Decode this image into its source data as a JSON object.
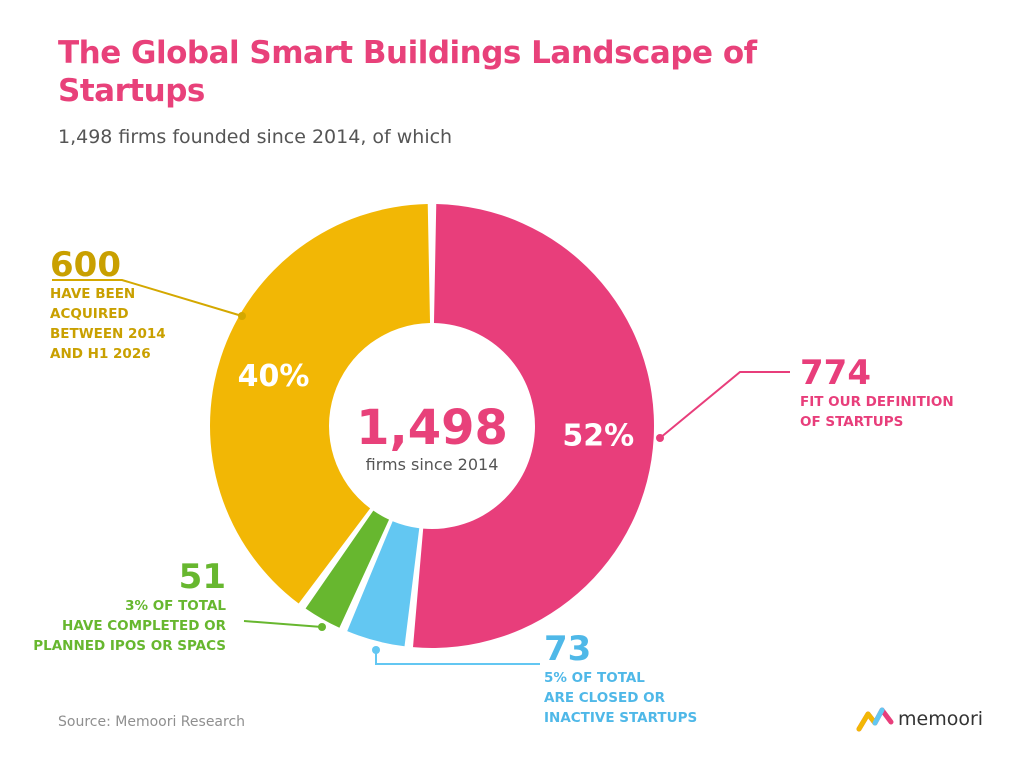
{
  "header": {
    "title": "The Global Smart Buildings Landscape of Startups",
    "subtitle": "1,498 firms founded since 2014, of which"
  },
  "center": {
    "total": "1,498",
    "caption": "firms since 2014"
  },
  "callouts": {
    "startups": {
      "value": "774",
      "line1": "FIT OUR DEFINITION",
      "line2": "OF STARTUPS"
    },
    "acquired": {
      "value": "600",
      "line1": "HAVE BEEN",
      "line2": "ACQUIRED",
      "line3": "BETWEEN 2014",
      "line4": "AND H1 2026"
    },
    "ipos": {
      "value": "51",
      "line1": "3% OF TOTAL",
      "line2": "HAVE COMPLETED OR",
      "line3": "PLANNED IPOS OR SPACS"
    },
    "closed": {
      "value": "73",
      "line1": "5% OF TOTAL",
      "line2": "ARE CLOSED OR",
      "line3": "INACTIVE STARTUPS"
    }
  },
  "footer": {
    "source": "Source: Memoori Research",
    "brand": "memoori"
  },
  "colors": {
    "title": "#e8417a",
    "startups": "#e83e7b",
    "acquired": "#f2b705",
    "acquired_text": "#c9a000",
    "ipos": "#67b72f",
    "closed": "#63c7f2",
    "center_text": "#e8417a"
  },
  "chart_data": {
    "type": "pie",
    "title": "The Global Smart Buildings Landscape of Startups",
    "total": 1498,
    "slices": [
      {
        "name": "Fit our definition of startups",
        "value": 774,
        "label": "52%",
        "color": "#e83e7b"
      },
      {
        "name": "Are closed or inactive startups",
        "value": 73,
        "label": "",
        "color": "#63c7f2"
      },
      {
        "name": "Have completed or planned IPOs or SPACs",
        "value": 51,
        "label": "",
        "color": "#67b72f"
      },
      {
        "name": "Have been acquired between 2014 and H1 2026",
        "value": 600,
        "label": "40%",
        "color": "#f2b705"
      }
    ],
    "style": "donut"
  }
}
